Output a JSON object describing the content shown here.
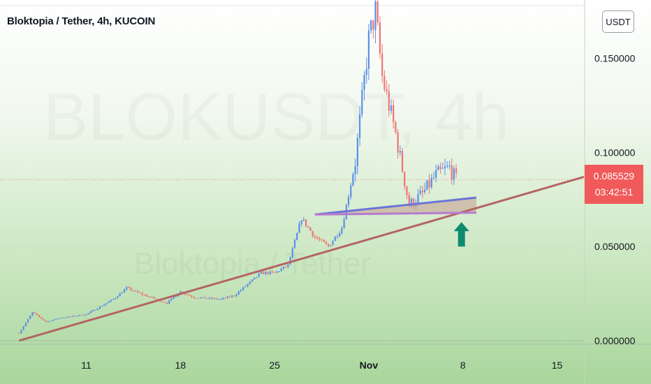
{
  "title": "Bloktopia / Tether, 4h, KUCOIN",
  "unit_badge": "USDT",
  "watermark": {
    "symbol": "BLOKUSDT, 4h",
    "name": "Bloktopia / Tether"
  },
  "last_price": {
    "value": "0.085529",
    "countdown": "03:42:51"
  },
  "colors": {
    "up": "#5b8ee6",
    "down": "#ef7373",
    "trendline": "#b46464",
    "resistance": "#6b74d8",
    "support": "#b57bd0",
    "triangle_fill": "#c49a8e",
    "arrow": "#0f8a6f",
    "price_box": "#f05a5a"
  },
  "chart_data": {
    "type": "candlestick",
    "title": "Bloktopia / Tether, 4h, KUCOIN",
    "y_tick_labels": [
      "0.150000",
      "0.100000",
      "0.050000",
      "0.000000"
    ],
    "y_ticks": [
      0.15,
      0.1,
      0.05,
      0.0
    ],
    "x_tick_labels": [
      "11",
      "18",
      "25",
      "Nov",
      "8",
      "15"
    ],
    "x_ticks": [
      "2021-10-11",
      "2021-10-18",
      "2021-10-25",
      "2021-11-01",
      "2021-11-08",
      "2021-11-15"
    ],
    "x_range": [
      "2021-10-05",
      "2021-11-17"
    ],
    "y_range": [
      -0.0015,
      0.178
    ],
    "grid": false,
    "last_price": 0.085529,
    "price_path": [
      [
        "2021-10-06",
        0.004
      ],
      [
        "2021-10-07",
        0.015
      ],
      [
        "2021-10-08",
        0.01
      ],
      [
        "2021-10-09",
        0.012
      ],
      [
        "2021-10-11",
        0.014
      ],
      [
        "2021-10-13",
        0.022
      ],
      [
        "2021-10-14",
        0.028
      ],
      [
        "2021-10-15",
        0.025
      ],
      [
        "2021-10-17",
        0.02
      ],
      [
        "2021-10-18",
        0.026
      ],
      [
        "2021-10-19",
        0.023
      ],
      [
        "2021-10-21",
        0.022
      ],
      [
        "2021-10-22",
        0.024
      ],
      [
        "2021-10-23",
        0.03
      ],
      [
        "2021-10-24",
        0.036
      ],
      [
        "2021-10-25",
        0.036
      ],
      [
        "2021-10-26",
        0.04
      ],
      [
        "2021-10-27",
        0.065
      ],
      [
        "2021-10-28",
        0.055
      ],
      [
        "2021-10-29",
        0.05
      ],
      [
        "2021-10-30",
        0.06
      ],
      [
        "2021-10-31",
        0.095
      ],
      [
        "2021-11-01",
        0.16
      ],
      [
        "2021-11-01T12:00",
        0.175
      ],
      [
        "2021-11-02",
        0.14
      ],
      [
        "2021-11-03",
        0.11
      ],
      [
        "2021-11-04",
        0.072
      ],
      [
        "2021-11-05",
        0.078
      ],
      [
        "2021-11-06",
        0.088
      ],
      [
        "2021-11-07",
        0.092
      ],
      [
        "2021-11-07T12:00",
        0.085529
      ]
    ],
    "trendline": [
      [
        "2021-10-06",
        0.0
      ],
      [
        "2021-11-17",
        0.087
      ]
    ],
    "resistance_line": [
      [
        "2021-10-28",
        0.067
      ],
      [
        "2021-11-09",
        0.076
      ]
    ],
    "support_line": [
      [
        "2021-10-28",
        0.067
      ],
      [
        "2021-11-09",
        0.068
      ]
    ],
    "annotation_arrow": {
      "date": "2021-11-08",
      "from": 0.05,
      "to": 0.063,
      "direction": "up"
    }
  }
}
